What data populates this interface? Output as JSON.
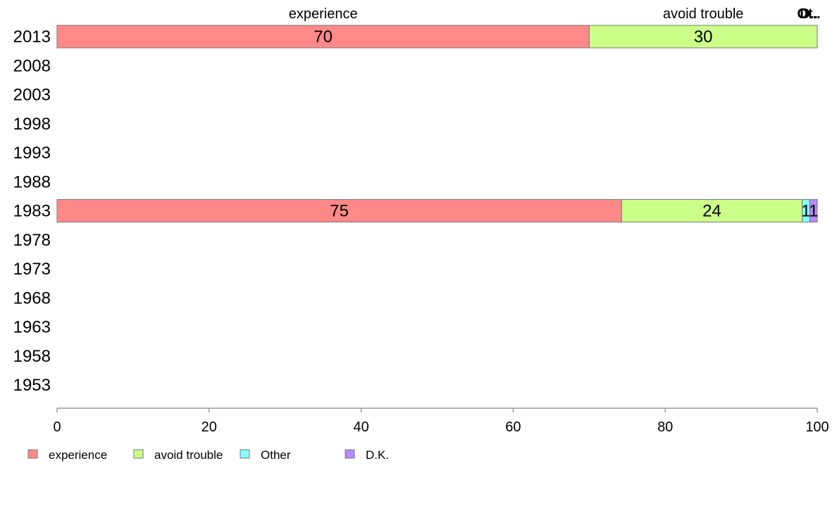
{
  "chart_data": {
    "type": "bar",
    "orientation": "horizontal",
    "stacked": true,
    "categories": [
      "2013",
      "2008",
      "2003",
      "1998",
      "1993",
      "1988",
      "1983",
      "1978",
      "1973",
      "1968",
      "1963",
      "1958",
      "1953"
    ],
    "series": [
      {
        "name": "experience",
        "color": "#ff8888",
        "values": [
          70,
          null,
          null,
          null,
          null,
          null,
          75,
          null,
          null,
          null,
          null,
          null,
          null
        ]
      },
      {
        "name": "avoid trouble",
        "color": "#ccff88",
        "values": [
          30,
          null,
          null,
          null,
          null,
          null,
          24,
          null,
          null,
          null,
          null,
          null,
          null
        ]
      },
      {
        "name": "Other",
        "color": "#88ffff",
        "values": [
          0,
          null,
          null,
          null,
          null,
          null,
          1,
          null,
          null,
          null,
          null,
          null,
          null
        ]
      },
      {
        "name": "D.K.",
        "color": "#bb88ff",
        "values": [
          0,
          null,
          null,
          null,
          null,
          null,
          1,
          null,
          null,
          null,
          null,
          null,
          null
        ]
      }
    ],
    "top_labels": [
      "experience",
      "avoid trouble",
      "Ot..",
      "D.."
    ],
    "xlim": [
      0,
      100
    ],
    "xticks": [
      0,
      20,
      40,
      60,
      80,
      100
    ],
    "xlabel": "",
    "ylabel": "",
    "grid": false,
    "legend": {
      "position": "bottom-left",
      "entries": [
        "experience",
        "avoid trouble",
        "Other",
        "D.K."
      ]
    }
  }
}
